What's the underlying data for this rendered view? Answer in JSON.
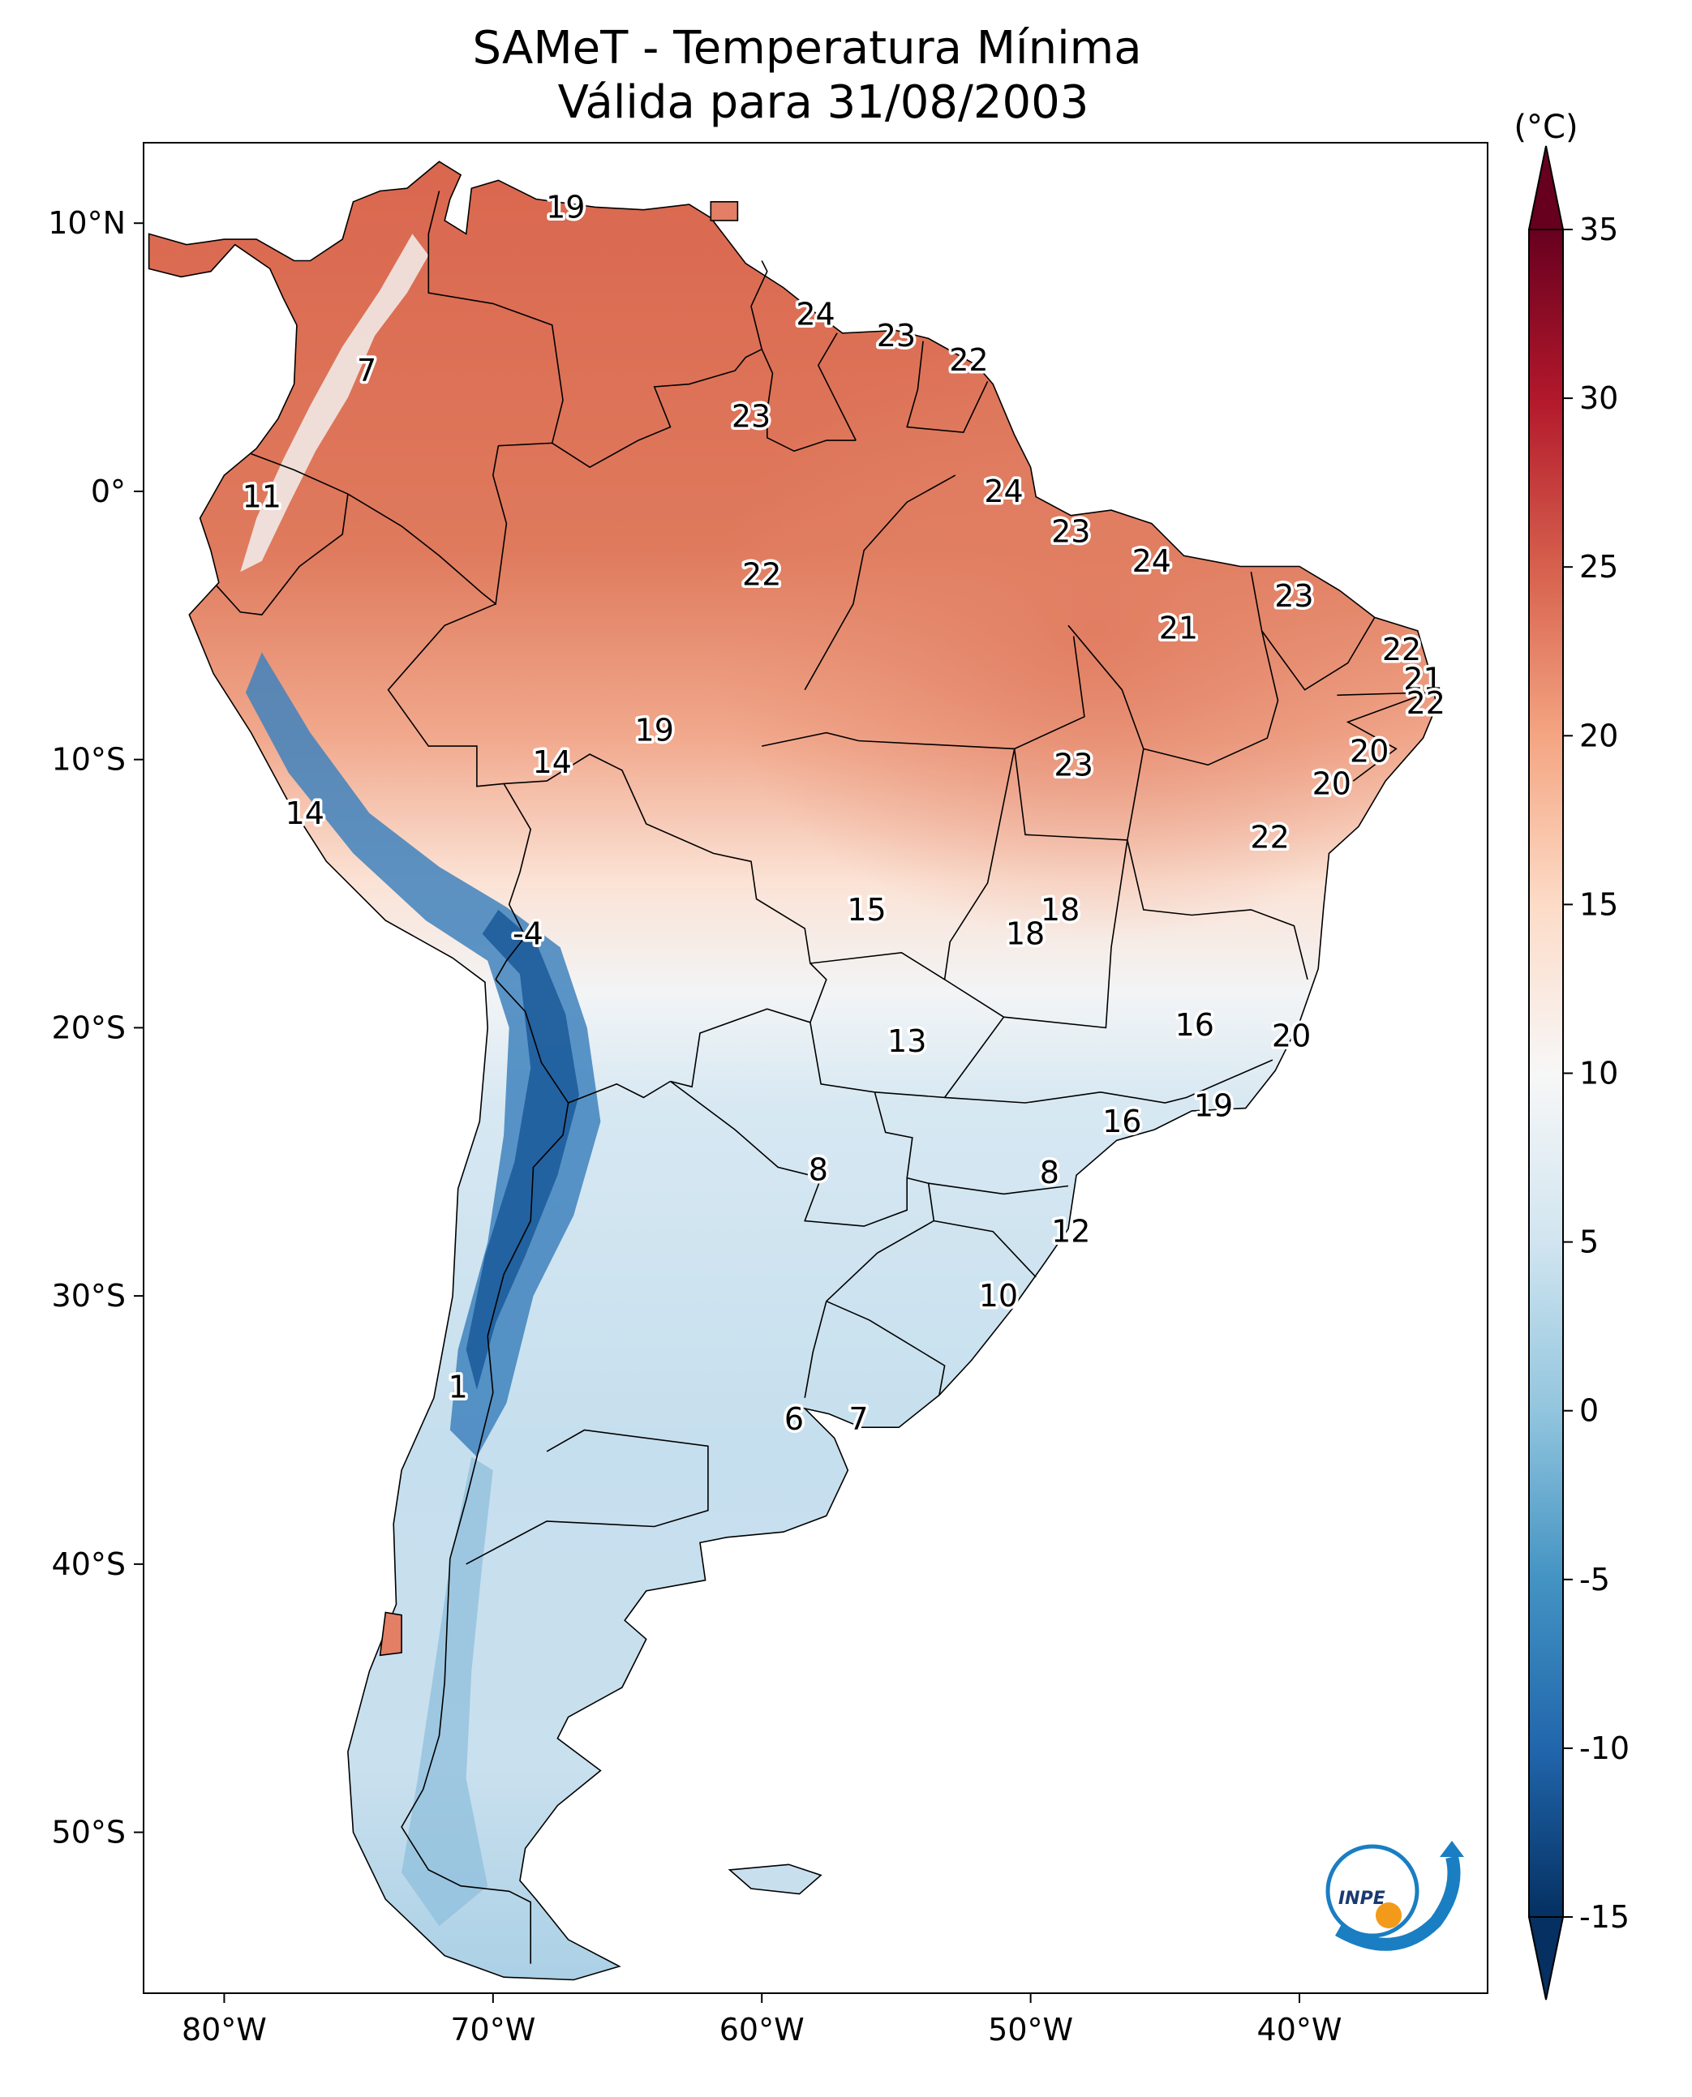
{
  "title_line1": "SAMeT - Temperatura Mínima",
  "title_line2": "Válida para 31/08/2003",
  "colorbar": {
    "unit": "(°C)",
    "range": [
      -15,
      35
    ],
    "ticks": [
      "35",
      "30",
      "25",
      "20",
      "15",
      "10",
      "5",
      "0",
      "-5",
      "-10",
      "-15"
    ],
    "colormap": "RdBu_r",
    "extend": "both"
  },
  "axes": {
    "lon_ticks": [
      "80°W",
      "70°W",
      "60°W",
      "50°W",
      "40°W"
    ],
    "lat_ticks": [
      "10°N",
      "0°",
      "10°S",
      "20°S",
      "30°S",
      "40°S",
      "50°S"
    ],
    "lon_range": [
      -83,
      -33
    ],
    "lat_range": [
      -56,
      13
    ]
  },
  "logo_text": "INPE",
  "colors": {
    "warm": "#d6604d",
    "hot": "#b2182b",
    "mild": "#f4a582",
    "neutral": "#f7f7f7",
    "cool": "#d1e5f0",
    "cold": "#4393c3",
    "frigid": "#2166ac",
    "deep": "#053061",
    "logo_blue": "#1a7ec2",
    "logo_orange": "#f39a1b"
  },
  "stations": [
    {
      "label": "19",
      "lon": -67.3,
      "lat": 10.6
    },
    {
      "label": "24",
      "lon": -58.0,
      "lat": 6.6
    },
    {
      "label": "23",
      "lon": -55.0,
      "lat": 5.8
    },
    {
      "label": "22",
      "lon": -52.3,
      "lat": 4.9
    },
    {
      "label": "7",
      "lon": -74.7,
      "lat": 4.5
    },
    {
      "label": "23",
      "lon": -60.4,
      "lat": 2.8
    },
    {
      "label": "11",
      "lon": -78.6,
      "lat": -0.2
    },
    {
      "label": "24",
      "lon": -51.0,
      "lat": 0.0
    },
    {
      "label": "23",
      "lon": -48.5,
      "lat": -1.5
    },
    {
      "label": "24",
      "lon": -45.5,
      "lat": -2.6
    },
    {
      "label": "22",
      "lon": -60.0,
      "lat": -3.1
    },
    {
      "label": "23",
      "lon": -40.2,
      "lat": -3.9
    },
    {
      "label": "21",
      "lon": -44.5,
      "lat": -5.1
    },
    {
      "label": "22",
      "lon": -36.2,
      "lat": -5.9
    },
    {
      "label": "21",
      "lon": -35.4,
      "lat": -7.0
    },
    {
      "label": "22",
      "lon": -35.3,
      "lat": -7.9
    },
    {
      "label": "19",
      "lon": -64.0,
      "lat": -8.9
    },
    {
      "label": "20",
      "lon": -37.4,
      "lat": -9.7
    },
    {
      "label": "14",
      "lon": -67.8,
      "lat": -10.1
    },
    {
      "label": "23",
      "lon": -48.4,
      "lat": -10.2
    },
    {
      "label": "20",
      "lon": -38.8,
      "lat": -10.9
    },
    {
      "label": "14",
      "lon": -77.0,
      "lat": -12.0
    },
    {
      "label": "22",
      "lon": -41.1,
      "lat": -12.9
    },
    {
      "label": "15",
      "lon": -56.1,
      "lat": -15.6
    },
    {
      "label": "18",
      "lon": -48.9,
      "lat": -15.6
    },
    {
      "label": "-4",
      "lon": -68.7,
      "lat": -16.5
    },
    {
      "label": "18",
      "lon": -50.2,
      "lat": -16.5
    },
    {
      "label": "16",
      "lon": -43.9,
      "lat": -19.9
    },
    {
      "label": "20",
      "lon": -40.3,
      "lat": -20.3
    },
    {
      "label": "13",
      "lon": -54.6,
      "lat": -20.5
    },
    {
      "label": "19",
      "lon": -43.2,
      "lat": -22.9
    },
    {
      "label": "16",
      "lon": -46.6,
      "lat": -23.5
    },
    {
      "label": "8",
      "lon": -57.9,
      "lat": -25.3
    },
    {
      "label": "8",
      "lon": -49.3,
      "lat": -25.4
    },
    {
      "label": "12",
      "lon": -48.5,
      "lat": -27.6
    },
    {
      "label": "10",
      "lon": -51.2,
      "lat": -30.0
    },
    {
      "label": "1",
      "lon": -71.3,
      "lat": -33.4
    },
    {
      "label": "6",
      "lon": -58.8,
      "lat": -34.6
    },
    {
      "label": "7",
      "lon": -56.4,
      "lat": -34.6
    }
  ]
}
